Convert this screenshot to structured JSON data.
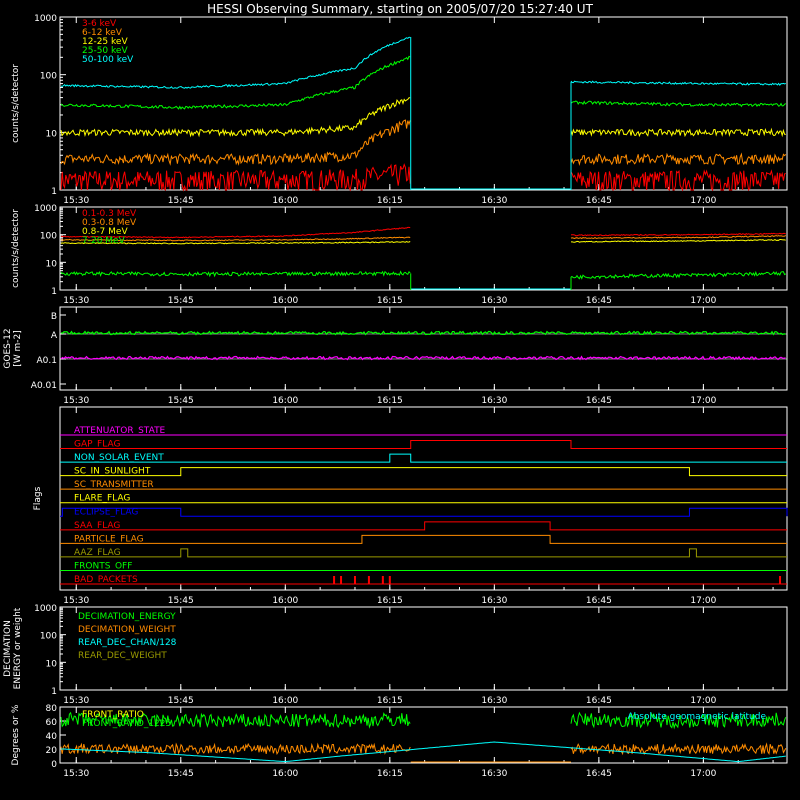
{
  "title": "HESSI Observing Summary, starting on 2005/07/20 15:27:40 UT",
  "colors": {
    "red": "#ff0000",
    "orange": "#ff8c00",
    "yellow": "#ffff00",
    "green": "#00ff00",
    "cyan": "#00ffff",
    "magenta": "#ff00ff",
    "blue": "#0000ff",
    "olive": "#9a9a00",
    "white": "#ffffff"
  },
  "chart_data": [
    {
      "type": "line",
      "ylabel": "counts/s/detector",
      "yscale": "log",
      "ylim": [
        1,
        1000
      ],
      "y_ticks": [
        "1",
        "10",
        "100",
        "1000"
      ],
      "x_ticks": [
        "15:30",
        "15:45",
        "16:00",
        "16:15",
        "16:30",
        "16:45",
        "17:00"
      ],
      "data_gap": [
        "16:18",
        "16:41"
      ],
      "series": [
        {
          "name": "3-6 keV",
          "color": "red",
          "x": [
            "15:28",
            "15:45",
            "16:00",
            "16:10",
            "16:18",
            "16:41",
            "17:00",
            "17:12"
          ],
          "y": [
            1.5,
            1.5,
            1.5,
            1.6,
            2,
            1.5,
            1.5,
            1.5
          ]
        },
        {
          "name": "6-12 keV",
          "color": "orange",
          "x": [
            "15:28",
            "15:45",
            "16:00",
            "16:10",
            "16:18",
            "16:41",
            "17:00",
            "17:12"
          ],
          "y": [
            3.5,
            3.5,
            3.5,
            4,
            15,
            3.5,
            3.5,
            3.5
          ]
        },
        {
          "name": "12-25 keV",
          "color": "yellow",
          "x": [
            "15:28",
            "15:45",
            "16:00",
            "16:10",
            "16:18",
            "16:41",
            "17:00",
            "17:12"
          ],
          "y": [
            10,
            10,
            10,
            12,
            40,
            10,
            10,
            10
          ]
        },
        {
          "name": "25-50 keV",
          "color": "green",
          "x": [
            "15:28",
            "15:45",
            "16:00",
            "16:10",
            "16:18",
            "16:41",
            "17:00",
            "17:12"
          ],
          "y": [
            30,
            27,
            30,
            60,
            200,
            33,
            30,
            30
          ]
        },
        {
          "name": "50-100 keV",
          "color": "cyan",
          "x": [
            "15:28",
            "15:45",
            "16:00",
            "16:10",
            "16:18",
            "16:41",
            "17:00",
            "17:12"
          ],
          "y": [
            65,
            60,
            70,
            130,
            450,
            75,
            70,
            68
          ]
        }
      ]
    },
    {
      "type": "line",
      "ylabel": "counts/s/detector",
      "yscale": "log",
      "ylim": [
        1,
        1000
      ],
      "y_ticks": [
        "1",
        "10",
        "100",
        "1000"
      ],
      "x_ticks": [
        "15:30",
        "15:45",
        "16:00",
        "16:15",
        "16:30",
        "16:45",
        "17:00"
      ],
      "data_gap": [
        "16:18",
        "16:41"
      ],
      "series": [
        {
          "name": "0.1-0.3 MeV",
          "color": "red",
          "x": [
            "15:28",
            "15:45",
            "16:00",
            "16:10",
            "16:18",
            "16:41",
            "17:00",
            "17:12"
          ],
          "y": [
            85,
            80,
            90,
            120,
            180,
            95,
            100,
            110
          ]
        },
        {
          "name": "0.3-0.8 MeV",
          "color": "orange",
          "x": [
            "15:28",
            "15:45",
            "16:00",
            "16:10",
            "16:18",
            "16:41",
            "17:00",
            "17:12"
          ],
          "y": [
            65,
            62,
            65,
            72,
            80,
            75,
            80,
            90
          ]
        },
        {
          "name": "0.8-7 MeV",
          "color": "yellow",
          "x": [
            "15:28",
            "15:45",
            "16:00",
            "16:10",
            "16:18",
            "16:41",
            "17:00",
            "17:12"
          ],
          "y": [
            50,
            48,
            50,
            52,
            55,
            55,
            60,
            65
          ]
        },
        {
          "name": "7-20 MeV",
          "color": "green",
          "x": [
            "15:28",
            "15:45",
            "16:00",
            "16:10",
            "16:18",
            "16:41",
            "17:00",
            "17:12"
          ],
          "y": [
            4,
            3.8,
            3.8,
            4,
            4,
            3,
            3.5,
            4
          ]
        }
      ]
    },
    {
      "type": "line",
      "ylabel": "GOES-12 [W m-2]",
      "yscale": "log",
      "y_ticks": [
        "A0.01",
        "A0.1",
        "A",
        "B"
      ],
      "x_ticks": [
        "15:30",
        "15:45",
        "16:00",
        "16:15",
        "16:30",
        "16:45",
        "17:00"
      ],
      "series": [
        {
          "color": "green",
          "x": [
            "15:28",
            "15:45",
            "16:00",
            "16:15",
            "16:30",
            "16:45",
            "17:00",
            "17:12"
          ],
          "y_class": [
            "A",
            "A",
            "A",
            "A",
            "A",
            "A",
            "A",
            "A"
          ]
        },
        {
          "color": "magenta",
          "x": [
            "15:28",
            "15:45",
            "16:00",
            "16:15",
            "16:30",
            "16:45",
            "17:00",
            "17:12"
          ],
          "y_class": [
            "A0.1",
            "A0.1",
            "A0.1",
            "A0.1",
            "A0.1",
            "A0.1",
            "A0.1",
            "A0.1"
          ]
        }
      ]
    },
    {
      "type": "line",
      "ylabel": "Flags",
      "x_ticks": [
        "15:30",
        "15:45",
        "16:00",
        "16:15",
        "16:30",
        "16:45",
        "17:00"
      ],
      "flags": [
        {
          "name": "ATTENUATOR_STATE",
          "color": "magenta",
          "on": []
        },
        {
          "name": "GAP_FLAG",
          "color": "red",
          "on": [
            [
              "16:18",
              "16:41"
            ]
          ]
        },
        {
          "name": "NON_SOLAR_EVENT",
          "color": "cyan",
          "on": [
            [
              "16:15",
              "16:18"
            ]
          ]
        },
        {
          "name": "SC_IN_SUNLIGHT",
          "color": "yellow",
          "on": [
            [
              "15:45",
              "16:58"
            ]
          ]
        },
        {
          "name": "SC_TRANSMITTER",
          "color": "orange",
          "on": []
        },
        {
          "name": "FLARE_FLAG",
          "color": "yellow",
          "on": []
        },
        {
          "name": "ECLIPSE_FLAG",
          "color": "blue",
          "on": [
            [
              "15:28",
              "15:45"
            ],
            [
              "16:58",
              "17:12"
            ]
          ]
        },
        {
          "name": "SAA_FLAG",
          "color": "red",
          "on": [
            [
              "16:20",
              "16:38"
            ]
          ]
        },
        {
          "name": "PARTICLE_FLAG",
          "color": "orange",
          "on": [
            [
              "16:11",
              "16:38"
            ]
          ]
        },
        {
          "name": "AAZ_FLAG",
          "color": "olive",
          "on": [
            [
              "15:45",
              "15:46"
            ],
            [
              "16:58",
              "16:59"
            ]
          ]
        },
        {
          "name": "FRONTS_OFF",
          "color": "green",
          "on": []
        },
        {
          "name": "BAD_PACKETS",
          "color": "red",
          "spikes": [
            "16:07",
            "16:08",
            "16:10",
            "16:12",
            "16:14",
            "16:15",
            "17:11"
          ]
        }
      ]
    },
    {
      "type": "line",
      "ylabel": "DECIMATION ENERGY or weight",
      "yscale": "log",
      "ylim": [
        1,
        1000
      ],
      "y_ticks": [
        "1",
        "10",
        "100",
        "1000"
      ],
      "x_ticks": [
        "15:30",
        "15:45",
        "16:00",
        "16:15",
        "16:30",
        "16:45",
        "17:00"
      ],
      "series": [
        {
          "name": "DECIMATION_ENERGY",
          "color": "green",
          "x": [],
          "y": []
        },
        {
          "name": "DECIMATION_WEIGHT",
          "color": "orange",
          "x": [],
          "y": []
        },
        {
          "name": "REAR_DEC_CHAN/128",
          "color": "cyan",
          "x": [],
          "y": []
        },
        {
          "name": "REAR_DEC_WEIGHT",
          "color": "olive",
          "x": [],
          "y": []
        }
      ]
    },
    {
      "type": "line",
      "ylabel": "Degrees or %",
      "ylim": [
        0,
        80
      ],
      "y_ticks": [
        "0",
        "20",
        "40",
        "60",
        "80"
      ],
      "x_ticks": [
        "15:30",
        "15:45",
        "16:00",
        "16:15",
        "16:30",
        "16:45",
        "17:00"
      ],
      "annotation": "Absolute geomagnetic latitude",
      "series": [
        {
          "name": "FRONT_RATIO",
          "color": "yellow",
          "x": [],
          "y": []
        },
        {
          "name": "FRONT_RATIO_1225",
          "color": "green",
          "x": [
            "15:28",
            "15:45",
            "16:00",
            "16:18",
            "16:41",
            "17:00",
            "17:12"
          ],
          "y": [
            62,
            60,
            60,
            62,
            62,
            60,
            62
          ]
        },
        {
          "name": "",
          "color": "orange",
          "x": [
            "15:28",
            "15:45",
            "16:00",
            "16:18",
            "16:41",
            "17:00",
            "17:12"
          ],
          "y": [
            20,
            20,
            20,
            20,
            20,
            20,
            20
          ]
        },
        {
          "name": "Absolute geomagnetic latitude",
          "color": "cyan",
          "x": [
            "15:28",
            "15:40",
            "16:00",
            "16:08",
            "16:30",
            "16:50",
            "17:05",
            "17:12"
          ],
          "y": [
            20,
            15,
            2,
            10,
            30,
            15,
            2,
            10
          ]
        }
      ]
    }
  ]
}
